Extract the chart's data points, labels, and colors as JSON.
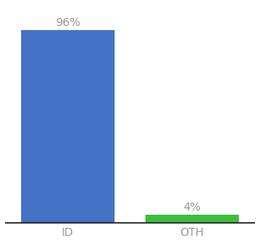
{
  "categories": [
    "ID",
    "OTH"
  ],
  "values": [
    96,
    4
  ],
  "bar_colors": [
    "#4472c4",
    "#3dbf3d"
  ],
  "label_color": "#999999",
  "value_labels": [
    "96%",
    "4%"
  ],
  "background_color": "#ffffff",
  "ylim": [
    0,
    108
  ],
  "bar_width": 0.75,
  "label_fontsize": 10,
  "tick_fontsize": 10,
  "xlim": [
    -0.5,
    1.5
  ]
}
